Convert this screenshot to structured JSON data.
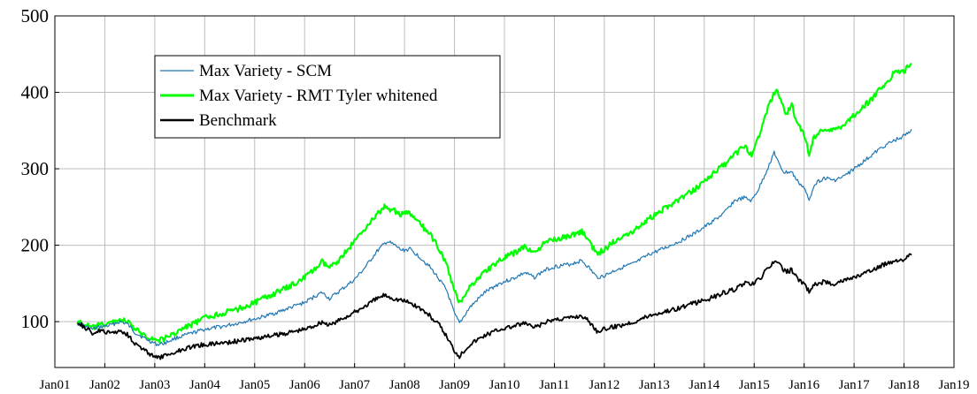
{
  "chart_data": {
    "type": "line",
    "title": "",
    "xlabel": "",
    "ylabel": "",
    "x_tick_labels": [
      "Jan01",
      "Jan02",
      "Jan03",
      "Jan04",
      "Jan05",
      "Jan06",
      "Jan07",
      "Jan08",
      "Jan09",
      "Jan10",
      "Jan11",
      "Jan12",
      "Jan13",
      "Jan14",
      "Jan15",
      "Jan16",
      "Jan17",
      "Jan18",
      "Jan19"
    ],
    "y_ticks": [
      100,
      200,
      300,
      400,
      500
    ],
    "xlim": [
      2001.0,
      2019.0
    ],
    "ylim": [
      40,
      500
    ],
    "grid": true,
    "legend_position": "top-left",
    "series": [
      {
        "name": "Max Variety - SCM",
        "color": "#1f77b4",
        "points": [
          [
            2001.45,
            98
          ],
          [
            2001.6,
            94
          ],
          [
            2001.75,
            90
          ],
          [
            2001.9,
            93
          ],
          [
            2002.1,
            95
          ],
          [
            2002.3,
            100
          ],
          [
            2002.45,
            97
          ],
          [
            2002.6,
            86
          ],
          [
            2002.8,
            78
          ],
          [
            2003.05,
            70
          ],
          [
            2003.2,
            72
          ],
          [
            2003.4,
            78
          ],
          [
            2003.6,
            82
          ],
          [
            2003.8,
            86
          ],
          [
            2004.0,
            90
          ],
          [
            2004.3,
            93
          ],
          [
            2004.6,
            97
          ],
          [
            2004.9,
            102
          ],
          [
            2005.1,
            105
          ],
          [
            2005.4,
            111
          ],
          [
            2005.7,
            118
          ],
          [
            2006.0,
            125
          ],
          [
            2006.2,
            133
          ],
          [
            2006.35,
            138
          ],
          [
            2006.5,
            130
          ],
          [
            2006.7,
            140
          ],
          [
            2007.0,
            155
          ],
          [
            2007.2,
            170
          ],
          [
            2007.45,
            192
          ],
          [
            2007.65,
            205
          ],
          [
            2007.8,
            200
          ],
          [
            2007.95,
            193
          ],
          [
            2008.1,
            195
          ],
          [
            2008.3,
            185
          ],
          [
            2008.5,
            172
          ],
          [
            2008.7,
            155
          ],
          [
            2008.85,
            140
          ],
          [
            2009.0,
            110
          ],
          [
            2009.1,
            98
          ],
          [
            2009.3,
            118
          ],
          [
            2009.6,
            138
          ],
          [
            2009.9,
            150
          ],
          [
            2010.2,
            157
          ],
          [
            2010.4,
            164
          ],
          [
            2010.6,
            158
          ],
          [
            2010.8,
            167
          ],
          [
            2011.0,
            172
          ],
          [
            2011.3,
            175
          ],
          [
            2011.55,
            180
          ],
          [
            2011.7,
            170
          ],
          [
            2011.85,
            158
          ],
          [
            2012.0,
            160
          ],
          [
            2012.3,
            170
          ],
          [
            2012.6,
            176
          ],
          [
            2012.9,
            188
          ],
          [
            2013.2,
            196
          ],
          [
            2013.5,
            205
          ],
          [
            2013.8,
            215
          ],
          [
            2014.1,
            228
          ],
          [
            2014.4,
            242
          ],
          [
            2014.6,
            258
          ],
          [
            2014.8,
            262
          ],
          [
            2014.95,
            258
          ],
          [
            2015.1,
            275
          ],
          [
            2015.3,
            305
          ],
          [
            2015.4,
            322
          ],
          [
            2015.5,
            305
          ],
          [
            2015.6,
            295
          ],
          [
            2015.75,
            296
          ],
          [
            2015.85,
            285
          ],
          [
            2016.0,
            275
          ],
          [
            2016.1,
            258
          ],
          [
            2016.2,
            280
          ],
          [
            2016.4,
            288
          ],
          [
            2016.6,
            285
          ],
          [
            2016.8,
            290
          ],
          [
            2017.0,
            300
          ],
          [
            2017.3,
            315
          ],
          [
            2017.6,
            330
          ],
          [
            2017.9,
            340
          ],
          [
            2018.05,
            345
          ],
          [
            2018.15,
            352
          ]
        ]
      },
      {
        "name": "Max Variety - RMT Tyler whitened",
        "color": "#00ff00",
        "points": [
          [
            2001.45,
            100
          ],
          [
            2001.6,
            96
          ],
          [
            2001.75,
            92
          ],
          [
            2001.9,
            95
          ],
          [
            2002.1,
            98
          ],
          [
            2002.3,
            103
          ],
          [
            2002.45,
            100
          ],
          [
            2002.6,
            90
          ],
          [
            2002.8,
            82
          ],
          [
            2003.05,
            75
          ],
          [
            2003.2,
            78
          ],
          [
            2003.4,
            85
          ],
          [
            2003.6,
            92
          ],
          [
            2003.8,
            98
          ],
          [
            2004.0,
            105
          ],
          [
            2004.3,
            110
          ],
          [
            2004.6,
            115
          ],
          [
            2004.9,
            122
          ],
          [
            2005.1,
            128
          ],
          [
            2005.4,
            137
          ],
          [
            2005.7,
            146
          ],
          [
            2006.0,
            158
          ],
          [
            2006.2,
            168
          ],
          [
            2006.35,
            178
          ],
          [
            2006.5,
            170
          ],
          [
            2006.7,
            182
          ],
          [
            2007.0,
            205
          ],
          [
            2007.2,
            222
          ],
          [
            2007.45,
            240
          ],
          [
            2007.6,
            250
          ],
          [
            2007.8,
            245
          ],
          [
            2007.95,
            240
          ],
          [
            2008.1,
            242
          ],
          [
            2008.3,
            228
          ],
          [
            2008.5,
            215
          ],
          [
            2008.7,
            195
          ],
          [
            2008.85,
            172
          ],
          [
            2009.0,
            140
          ],
          [
            2009.1,
            125
          ],
          [
            2009.3,
            145
          ],
          [
            2009.6,
            165
          ],
          [
            2009.9,
            180
          ],
          [
            2010.2,
            190
          ],
          [
            2010.4,
            198
          ],
          [
            2010.6,
            190
          ],
          [
            2010.8,
            202
          ],
          [
            2011.0,
            208
          ],
          [
            2011.3,
            212
          ],
          [
            2011.55,
            218
          ],
          [
            2011.7,
            205
          ],
          [
            2011.85,
            188
          ],
          [
            2012.0,
            195
          ],
          [
            2012.3,
            210
          ],
          [
            2012.6,
            220
          ],
          [
            2012.9,
            235
          ],
          [
            2013.2,
            248
          ],
          [
            2013.5,
            260
          ],
          [
            2013.8,
            272
          ],
          [
            2014.1,
            290
          ],
          [
            2014.4,
            305
          ],
          [
            2014.6,
            318
          ],
          [
            2014.8,
            330
          ],
          [
            2014.95,
            318
          ],
          [
            2015.1,
            345
          ],
          [
            2015.3,
            385
          ],
          [
            2015.45,
            405
          ],
          [
            2015.55,
            385
          ],
          [
            2015.65,
            372
          ],
          [
            2015.75,
            385
          ],
          [
            2015.85,
            360
          ],
          [
            2016.0,
            345
          ],
          [
            2016.1,
            318
          ],
          [
            2016.2,
            342
          ],
          [
            2016.4,
            352
          ],
          [
            2016.6,
            350
          ],
          [
            2016.8,
            358
          ],
          [
            2017.0,
            370
          ],
          [
            2017.3,
            388
          ],
          [
            2017.6,
            410
          ],
          [
            2017.8,
            425
          ],
          [
            2018.0,
            428
          ],
          [
            2018.15,
            438
          ]
        ]
      },
      {
        "name": "Benchmark",
        "color": "#000000",
        "points": [
          [
            2001.45,
            100
          ],
          [
            2001.6,
            92
          ],
          [
            2001.75,
            85
          ],
          [
            2001.9,
            88
          ],
          [
            2002.1,
            85
          ],
          [
            2002.3,
            88
          ],
          [
            2002.45,
            84
          ],
          [
            2002.6,
            72
          ],
          [
            2002.8,
            62
          ],
          [
            2003.05,
            52
          ],
          [
            2003.2,
            55
          ],
          [
            2003.4,
            60
          ],
          [
            2003.6,
            65
          ],
          [
            2003.8,
            68
          ],
          [
            2004.0,
            70
          ],
          [
            2004.3,
            72
          ],
          [
            2004.6,
            74
          ],
          [
            2004.9,
            77
          ],
          [
            2005.1,
            79
          ],
          [
            2005.4,
            82
          ],
          [
            2005.7,
            86
          ],
          [
            2006.0,
            90
          ],
          [
            2006.2,
            95
          ],
          [
            2006.35,
            100
          ],
          [
            2006.5,
            95
          ],
          [
            2006.7,
            102
          ],
          [
            2007.0,
            112
          ],
          [
            2007.2,
            120
          ],
          [
            2007.45,
            130
          ],
          [
            2007.6,
            135
          ],
          [
            2007.8,
            130
          ],
          [
            2007.95,
            128
          ],
          [
            2008.1,
            125
          ],
          [
            2008.3,
            118
          ],
          [
            2008.5,
            108
          ],
          [
            2008.7,
            95
          ],
          [
            2008.85,
            80
          ],
          [
            2009.0,
            62
          ],
          [
            2009.1,
            55
          ],
          [
            2009.3,
            70
          ],
          [
            2009.6,
            82
          ],
          [
            2009.9,
            90
          ],
          [
            2010.2,
            94
          ],
          [
            2010.4,
            98
          ],
          [
            2010.6,
            92
          ],
          [
            2010.8,
            98
          ],
          [
            2011.0,
            103
          ],
          [
            2011.3,
            105
          ],
          [
            2011.55,
            108
          ],
          [
            2011.7,
            100
          ],
          [
            2011.85,
            88
          ],
          [
            2012.0,
            90
          ],
          [
            2012.3,
            95
          ],
          [
            2012.6,
            100
          ],
          [
            2012.9,
            108
          ],
          [
            2013.2,
            113
          ],
          [
            2013.5,
            118
          ],
          [
            2013.8,
            124
          ],
          [
            2014.1,
            130
          ],
          [
            2014.4,
            138
          ],
          [
            2014.6,
            142
          ],
          [
            2014.8,
            150
          ],
          [
            2014.95,
            148
          ],
          [
            2015.1,
            155
          ],
          [
            2015.3,
            172
          ],
          [
            2015.45,
            180
          ],
          [
            2015.55,
            170
          ],
          [
            2015.65,
            165
          ],
          [
            2015.75,
            168
          ],
          [
            2015.85,
            158
          ],
          [
            2016.0,
            148
          ],
          [
            2016.1,
            140
          ],
          [
            2016.2,
            148
          ],
          [
            2016.4,
            152
          ],
          [
            2016.6,
            150
          ],
          [
            2016.8,
            154
          ],
          [
            2017.0,
            158
          ],
          [
            2017.3,
            165
          ],
          [
            2017.6,
            175
          ],
          [
            2017.8,
            180
          ],
          [
            2018.0,
            182
          ],
          [
            2018.15,
            187
          ]
        ]
      }
    ]
  }
}
